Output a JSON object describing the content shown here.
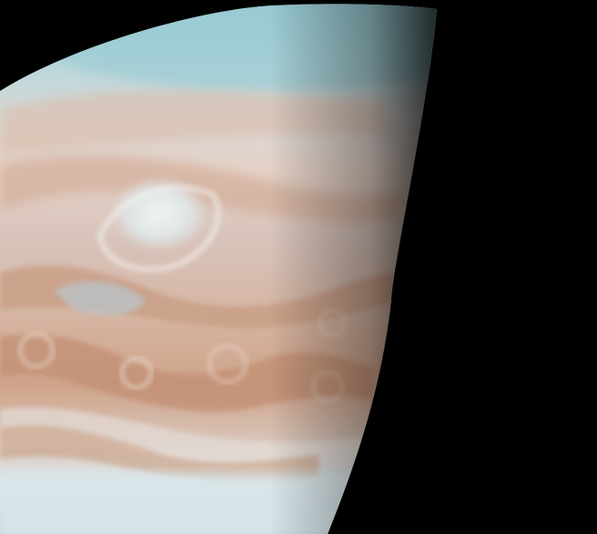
{
  "image": {
    "subject": "planet-jupiter-southern-hemisphere",
    "colors": {
      "space": "#000000",
      "polar_haze": "#9fcdd4",
      "cloud_cream": "#e8dcd3",
      "belt_tan": "#c9997e",
      "belt_rust": "#b97f64",
      "storm_white": "#e6eef0",
      "terminator": "#1a1410"
    }
  }
}
